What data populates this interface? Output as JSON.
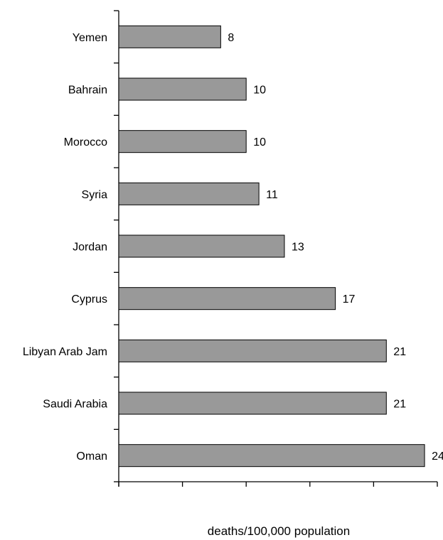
{
  "chart_data": {
    "type": "bar",
    "orientation": "horizontal",
    "categories": [
      "Yemen",
      "Bahrain",
      "Morocco",
      "Syria",
      "Jordan",
      "Cyprus",
      "Libyan Arab Jam",
      "Saudi Arabia",
      "Oman"
    ],
    "values": [
      8,
      10,
      10,
      11,
      13,
      17,
      21,
      21,
      24
    ],
    "data_labels": [
      "8",
      "10",
      "10",
      "11",
      "13",
      "17",
      "21",
      "21",
      "24"
    ],
    "title": "",
    "xlabel": "deaths/100,000 population",
    "ylabel": "",
    "xlim": [
      0,
      25
    ],
    "x_ticks_labeled": false,
    "grid": false,
    "legend": "none",
    "bar_color": "#999999"
  }
}
